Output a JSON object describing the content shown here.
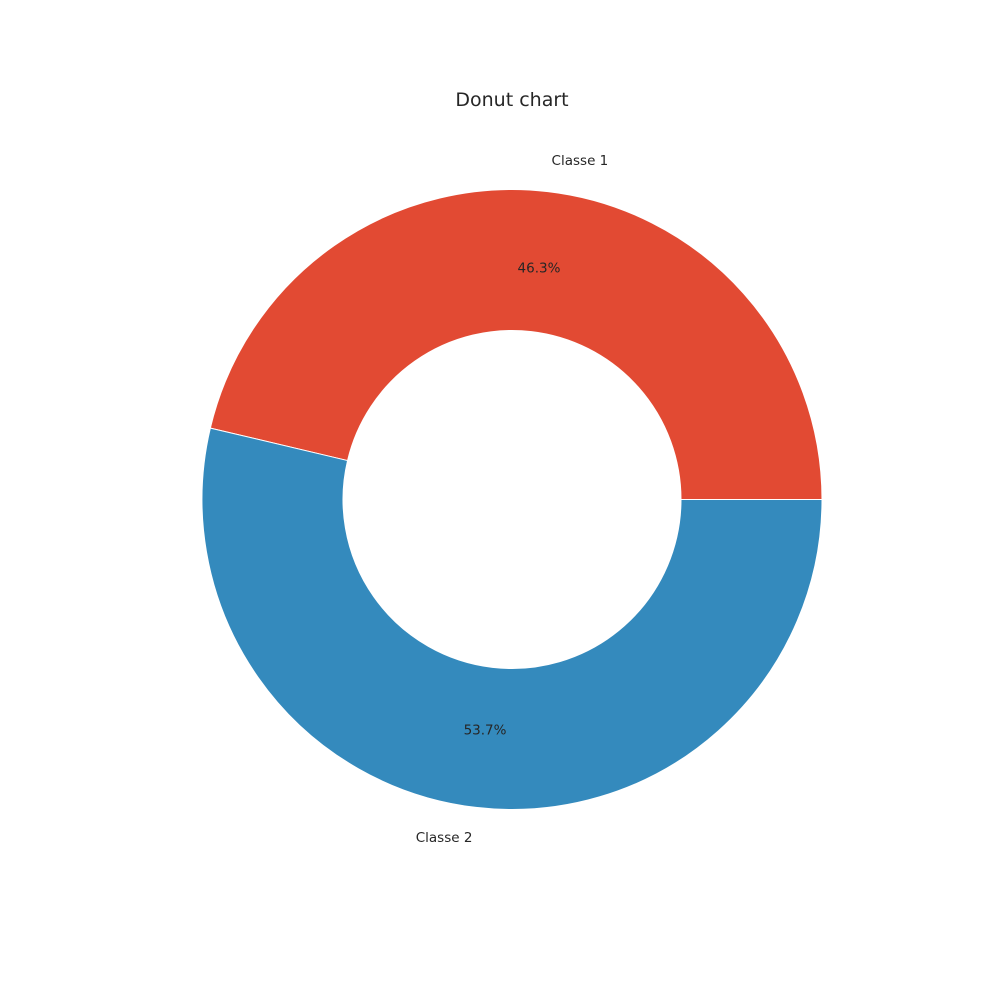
{
  "chart_data": {
    "type": "pie",
    "variant": "donut",
    "title": "Donut chart",
    "categories": [
      "Classe 1",
      "Classe 2"
    ],
    "values": [
      46.3,
      53.7
    ],
    "percent_labels": [
      "46.3%",
      "53.7%"
    ],
    "colors": [
      "#E24A33",
      "#348ABD"
    ],
    "start_angle_deg": 0,
    "direction": "counterclockwise"
  }
}
